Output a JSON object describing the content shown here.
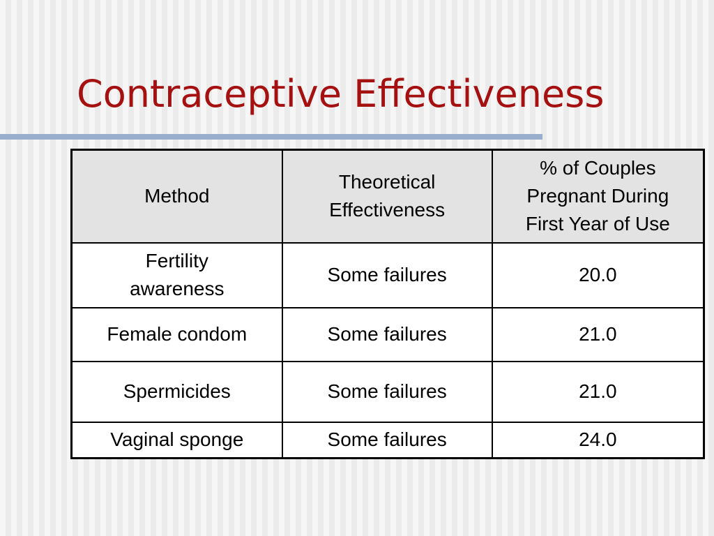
{
  "slide": {
    "title": "Contraceptive Effectiveness"
  },
  "table": {
    "headers": [
      [
        "Method"
      ],
      [
        "Theoretical",
        "Effectiveness"
      ],
      [
        "% of Couples",
        "Pregnant During",
        "First Year of Use"
      ]
    ],
    "rows": [
      {
        "method": [
          "Fertility",
          "awareness"
        ],
        "theoretical": "Some failures",
        "percent": "20.0"
      },
      {
        "method": [
          "Female condom"
        ],
        "theoretical": "Some failures",
        "percent": "21.0"
      },
      {
        "method": [
          "Spermicides"
        ],
        "theoretical": "Some failures",
        "percent": "21.0"
      },
      {
        "method": [
          "Vaginal sponge"
        ],
        "theoretical": "Some failures",
        "percent": "24.0"
      }
    ]
  },
  "colors": {
    "title": "#a51010",
    "rule": "#98aecc",
    "header_bg": "#e3e3e3"
  }
}
